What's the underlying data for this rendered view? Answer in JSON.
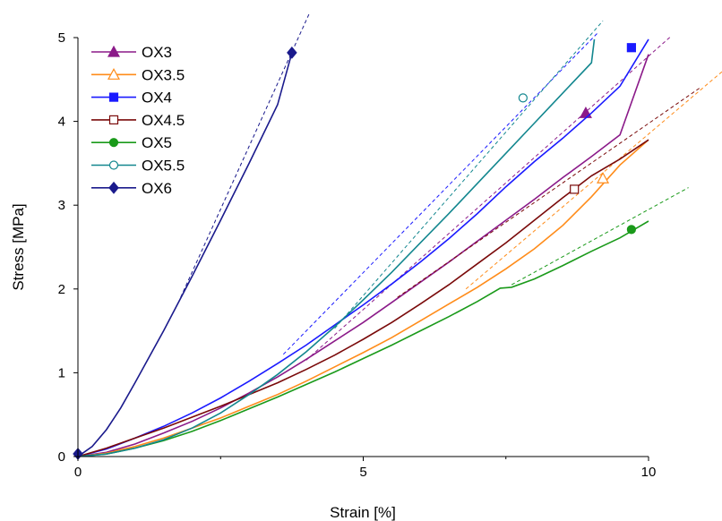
{
  "chart_data": {
    "type": "line",
    "xlabel": "Strain [%]",
    "ylabel": "Stress [MPa]",
    "xlim": [
      0,
      10
    ],
    "ylim": [
      0,
      5
    ],
    "x_ticks": [
      0,
      5,
      10
    ],
    "y_ticks": [
      0,
      1,
      2,
      3,
      4,
      5
    ],
    "x_tick_labels": [
      "0",
      "5",
      "10"
    ],
    "y_tick_labels": [
      "0",
      "1",
      "2",
      "3",
      "4",
      "5"
    ],
    "grid": false,
    "legend_position": "top-left",
    "series": [
      {
        "name": "OX3",
        "color": "#8b1a89",
        "marker": "triangle-filled",
        "points": [
          [
            0,
            0
          ],
          [
            0.5,
            0.05
          ],
          [
            1,
            0.15
          ],
          [
            1.5,
            0.28
          ],
          [
            2,
            0.42
          ],
          [
            2.5,
            0.58
          ],
          [
            3,
            0.76
          ],
          [
            3.5,
            0.95
          ],
          [
            4,
            1.16
          ],
          [
            4.5,
            1.38
          ],
          [
            5,
            1.6
          ],
          [
            5.5,
            1.84
          ],
          [
            6,
            2.08
          ],
          [
            6.5,
            2.32
          ],
          [
            7,
            2.57
          ],
          [
            7.5,
            2.82
          ],
          [
            8,
            3.07
          ],
          [
            8.5,
            3.33
          ],
          [
            9,
            3.58
          ],
          [
            9.5,
            3.84
          ],
          [
            10,
            4.8
          ]
        ],
        "marker_point": [
          8.9,
          4.1
        ],
        "fit_line": [
          [
            4,
            1.15
          ],
          [
            10.4,
            5.02
          ]
        ]
      },
      {
        "name": "OX3.5",
        "color": "#ff8c1a",
        "marker": "triangle-open",
        "points": [
          [
            0,
            0
          ],
          [
            0.5,
            0.04
          ],
          [
            1,
            0.12
          ],
          [
            1.5,
            0.22
          ],
          [
            2,
            0.34
          ],
          [
            2.5,
            0.46
          ],
          [
            3,
            0.6
          ],
          [
            3.5,
            0.74
          ],
          [
            4,
            0.9
          ],
          [
            4.5,
            1.07
          ],
          [
            5,
            1.24
          ],
          [
            5.5,
            1.42
          ],
          [
            6,
            1.62
          ],
          [
            6.5,
            1.82
          ],
          [
            7,
            2.02
          ],
          [
            7.5,
            2.24
          ],
          [
            8,
            2.48
          ],
          [
            8.5,
            2.76
          ],
          [
            9,
            3.1
          ],
          [
            9.5,
            3.48
          ],
          [
            10,
            3.78
          ]
        ],
        "marker_point": [
          9.2,
          3.32
        ],
        "fit_line": [
          [
            6.8,
            2.0
          ],
          [
            11.3,
            4.6
          ]
        ]
      },
      {
        "name": "OX4",
        "color": "#1a1aff",
        "marker": "square-filled",
        "points": [
          [
            0,
            0
          ],
          [
            0.5,
            0.09
          ],
          [
            1,
            0.22
          ],
          [
            1.5,
            0.36
          ],
          [
            2,
            0.52
          ],
          [
            2.5,
            0.7
          ],
          [
            3,
            0.9
          ],
          [
            3.5,
            1.11
          ],
          [
            4,
            1.33
          ],
          [
            4.5,
            1.57
          ],
          [
            5,
            1.81
          ],
          [
            5.5,
            2.06
          ],
          [
            6,
            2.32
          ],
          [
            6.5,
            2.6
          ],
          [
            7,
            2.9
          ],
          [
            7.5,
            3.22
          ],
          [
            8,
            3.52
          ],
          [
            8.5,
            3.8
          ],
          [
            9,
            4.1
          ],
          [
            9.5,
            4.42
          ],
          [
            10,
            4.98
          ]
        ],
        "marker_point": [
          9.7,
          4.88
        ],
        "fit_line": [
          [
            3.6,
            1.22
          ],
          [
            9.1,
            5.05
          ]
        ]
      },
      {
        "name": "OX4.5",
        "color": "#7a0a0a",
        "marker": "square-open",
        "points": [
          [
            0,
            0
          ],
          [
            0.5,
            0.1
          ],
          [
            1,
            0.22
          ],
          [
            1.5,
            0.34
          ],
          [
            2,
            0.47
          ],
          [
            2.5,
            0.6
          ],
          [
            3,
            0.74
          ],
          [
            3.5,
            0.88
          ],
          [
            4,
            1.04
          ],
          [
            4.5,
            1.21
          ],
          [
            5,
            1.4
          ],
          [
            5.5,
            1.6
          ],
          [
            6,
            1.82
          ],
          [
            6.5,
            2.05
          ],
          [
            7,
            2.3
          ],
          [
            7.5,
            2.55
          ],
          [
            8,
            2.82
          ],
          [
            8.5,
            3.09
          ],
          [
            9,
            3.35
          ],
          [
            9.5,
            3.55
          ],
          [
            10,
            3.78
          ]
        ],
        "marker_point": [
          8.7,
          3.19
        ],
        "fit_line": [
          [
            5.6,
            1.9
          ],
          [
            10.9,
            4.4
          ]
        ]
      },
      {
        "name": "OX5",
        "color": "#1a9a1a",
        "marker": "circle-filled",
        "points": [
          [
            0,
            0
          ],
          [
            0.5,
            0.03
          ],
          [
            1,
            0.1
          ],
          [
            1.5,
            0.19
          ],
          [
            2,
            0.3
          ],
          [
            2.5,
            0.43
          ],
          [
            3,
            0.57
          ],
          [
            3.5,
            0.71
          ],
          [
            4,
            0.86
          ],
          [
            4.5,
            1.01
          ],
          [
            5,
            1.17
          ],
          [
            5.5,
            1.33
          ],
          [
            6,
            1.5
          ],
          [
            6.5,
            1.67
          ],
          [
            7,
            1.85
          ],
          [
            7.4,
            2.01
          ],
          [
            7.6,
            2.02
          ],
          [
            8,
            2.12
          ],
          [
            8.5,
            2.28
          ],
          [
            9,
            2.45
          ],
          [
            9.5,
            2.61
          ],
          [
            10,
            2.81
          ]
        ],
        "marker_point": [
          9.7,
          2.71
        ],
        "fit_line": [
          [
            7.6,
            2.05
          ],
          [
            10.7,
            3.21
          ]
        ]
      },
      {
        "name": "OX5.5",
        "color": "#13878f",
        "marker": "circle-open",
        "points": [
          [
            0,
            0
          ],
          [
            0.5,
            0.03
          ],
          [
            1,
            0.1
          ],
          [
            1.5,
            0.2
          ],
          [
            2,
            0.34
          ],
          [
            2.5,
            0.52
          ],
          [
            3,
            0.74
          ],
          [
            3.5,
            0.98
          ],
          [
            4,
            1.25
          ],
          [
            4.5,
            1.55
          ],
          [
            5,
            1.87
          ],
          [
            5.5,
            2.2
          ],
          [
            6,
            2.55
          ],
          [
            6.5,
            2.9
          ],
          [
            7,
            3.26
          ],
          [
            7.5,
            3.62
          ],
          [
            8,
            3.98
          ],
          [
            8.5,
            4.34
          ],
          [
            9,
            4.7
          ],
          [
            9.05,
            4.98
          ]
        ],
        "marker_point": [
          7.8,
          4.28
        ],
        "fit_line": [
          [
            4.5,
            1.53
          ],
          [
            9.2,
            5.2
          ]
        ]
      },
      {
        "name": "OX6",
        "color": "#1a1a8c",
        "marker": "diamond-filled",
        "points": [
          [
            0,
            0
          ],
          [
            0.25,
            0.12
          ],
          [
            0.5,
            0.32
          ],
          [
            0.75,
            0.58
          ],
          [
            1,
            0.88
          ],
          [
            1.5,
            1.5
          ],
          [
            2,
            2.15
          ],
          [
            2.5,
            2.82
          ],
          [
            3,
            3.5
          ],
          [
            3.5,
            4.2
          ],
          [
            3.75,
            4.82
          ]
        ],
        "marker_point": [
          3.75,
          4.82
        ],
        "fit_line": [
          [
            1.8,
            1.9
          ],
          [
            4.05,
            5.28
          ]
        ]
      }
    ]
  }
}
